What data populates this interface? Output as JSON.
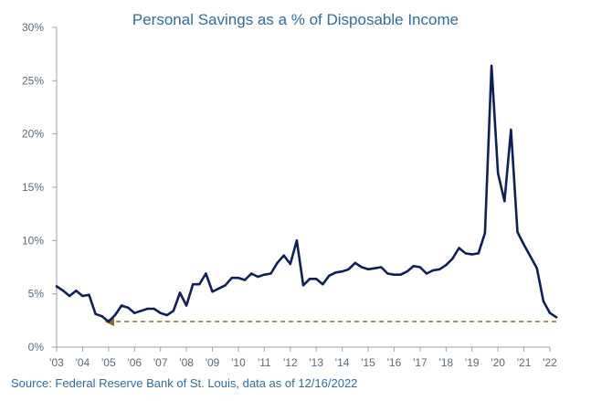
{
  "chart_data": {
    "type": "line",
    "title": "Personal Savings as a % of Disposable Income",
    "xlabel": "",
    "ylabel": "",
    "ylim": [
      0,
      30
    ],
    "yticks": [
      "0%",
      "5%",
      "10%",
      "15%",
      "20%",
      "25%",
      "30%"
    ],
    "xticks": [
      "'03",
      "'04",
      "'05",
      "'06",
      "'07",
      "'08",
      "'09",
      "'10",
      "'11",
      "'12",
      "'13",
      "'14",
      "'15",
      "'16",
      "'17",
      "'18",
      "'19",
      "'20",
      "'21",
      "'22"
    ],
    "grid": false,
    "series": [
      {
        "color": "#0e1f5b",
        "points": [
          [
            2003.0,
            5.7
          ],
          [
            2003.25,
            5.3
          ],
          [
            2003.5,
            4.8
          ],
          [
            2003.75,
            5.3
          ],
          [
            2004.0,
            4.8
          ],
          [
            2004.25,
            4.9
          ],
          [
            2004.5,
            3.1
          ],
          [
            2004.75,
            2.9
          ],
          [
            2005.0,
            2.4
          ],
          [
            2005.25,
            3.0
          ],
          [
            2005.5,
            3.9
          ],
          [
            2005.75,
            3.7
          ],
          [
            2006.0,
            3.2
          ],
          [
            2006.25,
            3.4
          ],
          [
            2006.5,
            3.6
          ],
          [
            2006.75,
            3.6
          ],
          [
            2007.0,
            3.2
          ],
          [
            2007.25,
            3.0
          ],
          [
            2007.5,
            3.4
          ],
          [
            2007.75,
            5.1
          ],
          [
            2008.0,
            3.9
          ],
          [
            2008.25,
            5.9
          ],
          [
            2008.5,
            5.9
          ],
          [
            2008.75,
            6.9
          ],
          [
            2009.0,
            5.2
          ],
          [
            2009.25,
            5.5
          ],
          [
            2009.5,
            5.8
          ],
          [
            2009.75,
            6.5
          ],
          [
            2010.0,
            6.5
          ],
          [
            2010.25,
            6.3
          ],
          [
            2010.5,
            6.9
          ],
          [
            2010.75,
            6.6
          ],
          [
            2011.0,
            6.8
          ],
          [
            2011.25,
            6.9
          ],
          [
            2011.5,
            7.9
          ],
          [
            2011.75,
            8.6
          ],
          [
            2012.0,
            7.8
          ],
          [
            2012.25,
            10.0
          ],
          [
            2012.5,
            5.8
          ],
          [
            2012.75,
            6.4
          ],
          [
            2013.0,
            6.4
          ],
          [
            2013.25,
            5.9
          ],
          [
            2013.5,
            6.7
          ],
          [
            2013.75,
            7.0
          ],
          [
            2014.0,
            7.1
          ],
          [
            2014.25,
            7.3
          ],
          [
            2014.5,
            7.9
          ],
          [
            2014.75,
            7.5
          ],
          [
            2015.0,
            7.3
          ],
          [
            2015.25,
            7.4
          ],
          [
            2015.5,
            7.5
          ],
          [
            2015.75,
            6.9
          ],
          [
            2016.0,
            6.8
          ],
          [
            2016.25,
            6.8
          ],
          [
            2016.5,
            7.1
          ],
          [
            2016.75,
            7.6
          ],
          [
            2017.0,
            7.5
          ],
          [
            2017.25,
            6.9
          ],
          [
            2017.5,
            7.2
          ],
          [
            2017.75,
            7.3
          ],
          [
            2018.0,
            7.7
          ],
          [
            2018.25,
            8.3
          ],
          [
            2018.5,
            9.3
          ],
          [
            2018.75,
            8.8
          ],
          [
            2019.0,
            8.7
          ],
          [
            2019.25,
            8.8
          ],
          [
            2019.5,
            10.7
          ],
          [
            2019.75,
            26.4
          ],
          [
            2020.0,
            16.3
          ],
          [
            2020.25,
            13.7
          ],
          [
            2020.5,
            20.4
          ],
          [
            2020.75,
            10.8
          ],
          [
            2021.0,
            9.6
          ],
          [
            2021.25,
            8.5
          ],
          [
            2021.5,
            7.4
          ],
          [
            2021.75,
            4.3
          ],
          [
            2022.0,
            3.2
          ],
          [
            2022.25,
            2.8
          ]
        ]
      }
    ],
    "annotations": [
      {
        "type": "dashed-arrow",
        "color": "#8b6a2b",
        "from": [
          2022.25,
          2.4
        ],
        "to": [
          2005.0,
          2.4
        ]
      }
    ]
  },
  "source": "Source: Federal Reserve Bank of St. Louis, data as of 12/16/2022"
}
